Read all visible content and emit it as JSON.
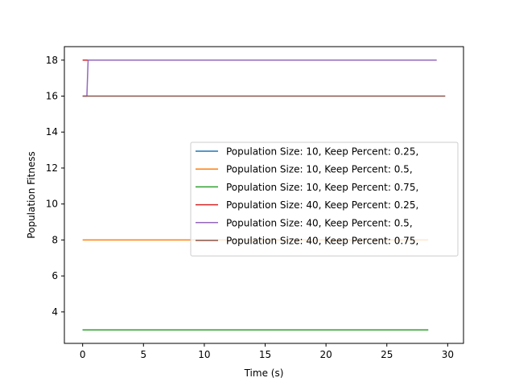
{
  "chart_data": {
    "type": "line",
    "title": "",
    "xlabel": "Time (s)",
    "ylabel": "Population Fitness",
    "xlim": [
      -1.5,
      31.3
    ],
    "ylim": [
      2.25,
      18.75
    ],
    "xticks": [
      0,
      5,
      10,
      15,
      20,
      25,
      30
    ],
    "yticks": [
      4,
      6,
      8,
      10,
      12,
      14,
      16,
      18
    ],
    "grid": false,
    "legend_position": "center-right",
    "series": [
      {
        "name": "Population Size: 10, Keep Percent: 0.25,",
        "color": "#1f77b4",
        "x": [
          0,
          28.4
        ],
        "y": [
          3,
          3
        ]
      },
      {
        "name": "Population Size: 10, Keep Percent: 0.5,",
        "color": "#ff7f0e",
        "x": [
          0,
          28.4
        ],
        "y": [
          8,
          8
        ]
      },
      {
        "name": "Population Size: 10, Keep Percent: 0.75,",
        "color": "#2ca02c",
        "x": [
          0,
          28.4
        ],
        "y": [
          3,
          3
        ]
      },
      {
        "name": "Population Size: 40, Keep Percent: 0.25,",
        "color": "#d62728",
        "x": [
          0,
          28.6
        ],
        "y": [
          18,
          18
        ]
      },
      {
        "name": "Population Size: 40, Keep Percent: 0.5,",
        "color": "#9467bd",
        "x": [
          0,
          0.35,
          0.45,
          29.1
        ],
        "y": [
          16,
          16,
          18,
          18
        ]
      },
      {
        "name": "Population Size: 40, Keep Percent: 0.75,",
        "color": "#8c564b",
        "x": [
          0,
          29.8
        ],
        "y": [
          16,
          16
        ]
      }
    ]
  }
}
